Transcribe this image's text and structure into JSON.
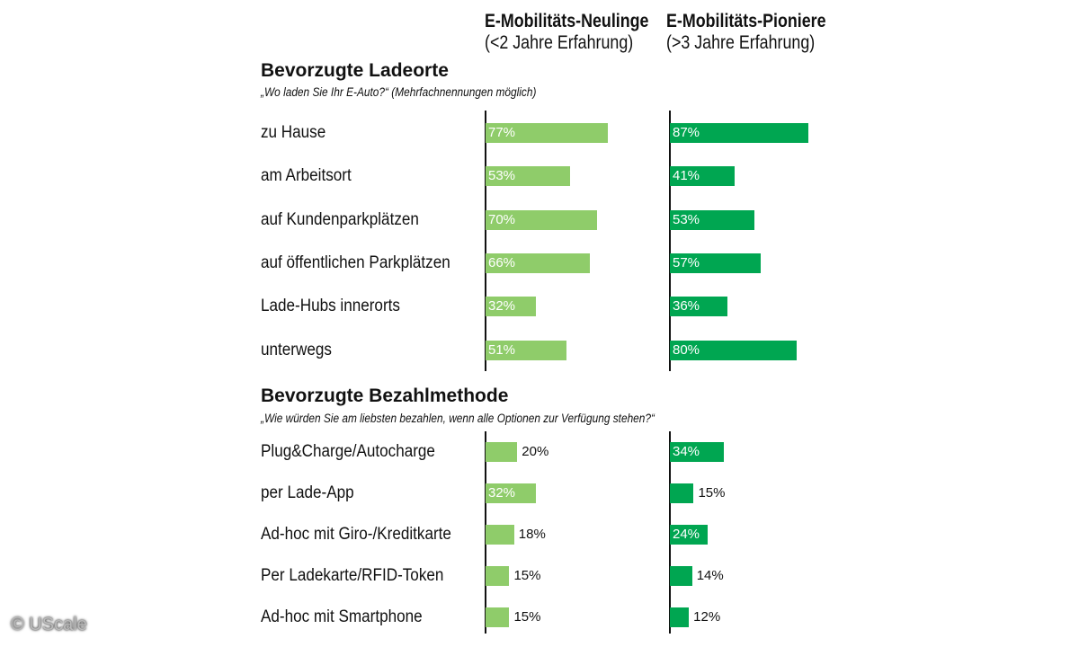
{
  "chart_data": {
    "type": "bar",
    "orientation": "horizontal",
    "unit": "%",
    "xlim": [
      0,
      100
    ],
    "grid": false,
    "colors": {
      "series_1": "#8fcc6a",
      "series_2": "#00a651"
    },
    "series_headers": [
      {
        "name": "E-Mobilitäts-Neulinge",
        "subtitle": "(<2 Jahre Erfahrung)"
      },
      {
        "name": "E-Mobilitäts-Pioniere",
        "subtitle": "(>3 Jahre Erfahrung)"
      }
    ],
    "sections": [
      {
        "title": "Bevorzugte Ladeorte",
        "subtitle": "„Wo laden Sie Ihr E-Auto?“ (Mehrfachnennungen möglich)",
        "categories": [
          "zu Hause",
          "am Arbeitsort",
          "auf Kundenparkplätzen",
          "auf öffentlichen Parkplätzen",
          "Lade-Hubs innerorts",
          "unterwegs"
        ],
        "series": [
          {
            "name": "E-Mobilitäts-Neulinge",
            "values": [
              77,
              53,
              70,
              66,
              32,
              51
            ]
          },
          {
            "name": "E-Mobilitäts-Pioniere",
            "values": [
              87,
              41,
              53,
              57,
              36,
              80
            ]
          }
        ]
      },
      {
        "title": "Bevorzugte Bezahlmethode",
        "subtitle": "„Wie würden Sie am liebsten bezahlen, wenn alle Optionen zur Verfügung stehen?“",
        "categories": [
          "Plug&Charge/Autocharge",
          "per Lade-App",
          "Ad-hoc mit Giro-/Kreditkarte",
          "Per Ladekarte/RFID-Token",
          "Ad-hoc mit Smartphone"
        ],
        "series": [
          {
            "name": "E-Mobilitäts-Neulinge",
            "values": [
              20,
              32,
              18,
              15,
              15
            ]
          },
          {
            "name": "E-Mobilitäts-Pioniere",
            "values": [
              34,
              15,
              24,
              14,
              12
            ]
          }
        ]
      }
    ]
  },
  "watermark": "© UScale"
}
